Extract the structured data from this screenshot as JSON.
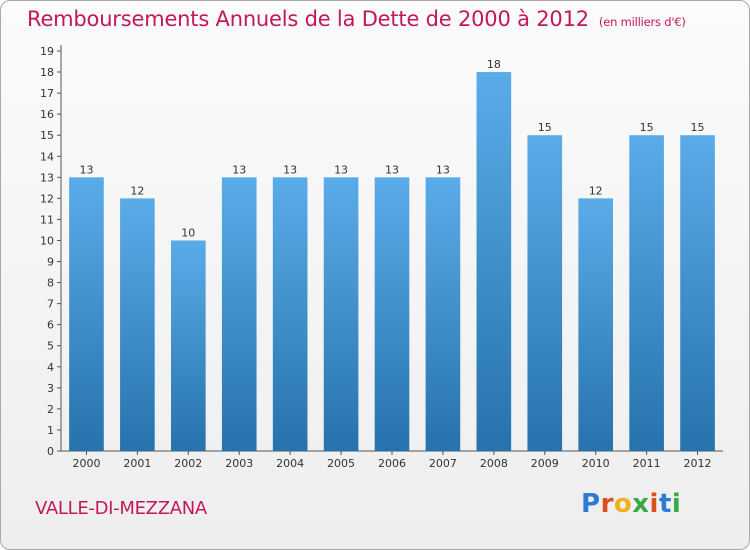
{
  "header": {
    "title": "Remboursements Annuels de la Dette de 2000 à 2012",
    "unit": "(en milliers d'€)"
  },
  "footer": {
    "place": "VALLE-DI-MEZZANA",
    "logo": {
      "letters": [
        "P",
        "r",
        "o",
        "x",
        "i",
        "t",
        "i"
      ],
      "colors": [
        "#2e7bd6",
        "#e04d1c",
        "#f2b01e",
        "#3aa845",
        "#e04d1c",
        "#2e7bd6",
        "#3aa845"
      ]
    }
  },
  "colors": {
    "title": "#c2185b",
    "bar_top": "#5aace8",
    "bar_bottom": "#2672ad"
  },
  "chart_data": {
    "type": "bar",
    "title": "Remboursements Annuels de la Dette de 2000 à 2012",
    "subtitle": "(en milliers d'€)",
    "categories": [
      "2000",
      "2001",
      "2002",
      "2003",
      "2004",
      "2005",
      "2006",
      "2007",
      "2008",
      "2009",
      "2010",
      "2011",
      "2012"
    ],
    "values": [
      13,
      12,
      10,
      13,
      13,
      13,
      13,
      13,
      18,
      15,
      12,
      15,
      15
    ],
    "value_labels": [
      "13",
      "12",
      "10",
      "13",
      "13",
      "13",
      "13",
      "13",
      "18",
      "15",
      "12",
      "15",
      "15"
    ],
    "y_ticks": [
      "0",
      "1",
      "2",
      "3",
      "4",
      "5",
      "6",
      "7",
      "8",
      "9",
      "10",
      "11",
      "12",
      "13",
      "14",
      "15",
      "16",
      "17",
      "18",
      "19"
    ],
    "ylim": [
      0,
      19
    ],
    "xlabel": "",
    "ylabel": "",
    "grid": false
  }
}
